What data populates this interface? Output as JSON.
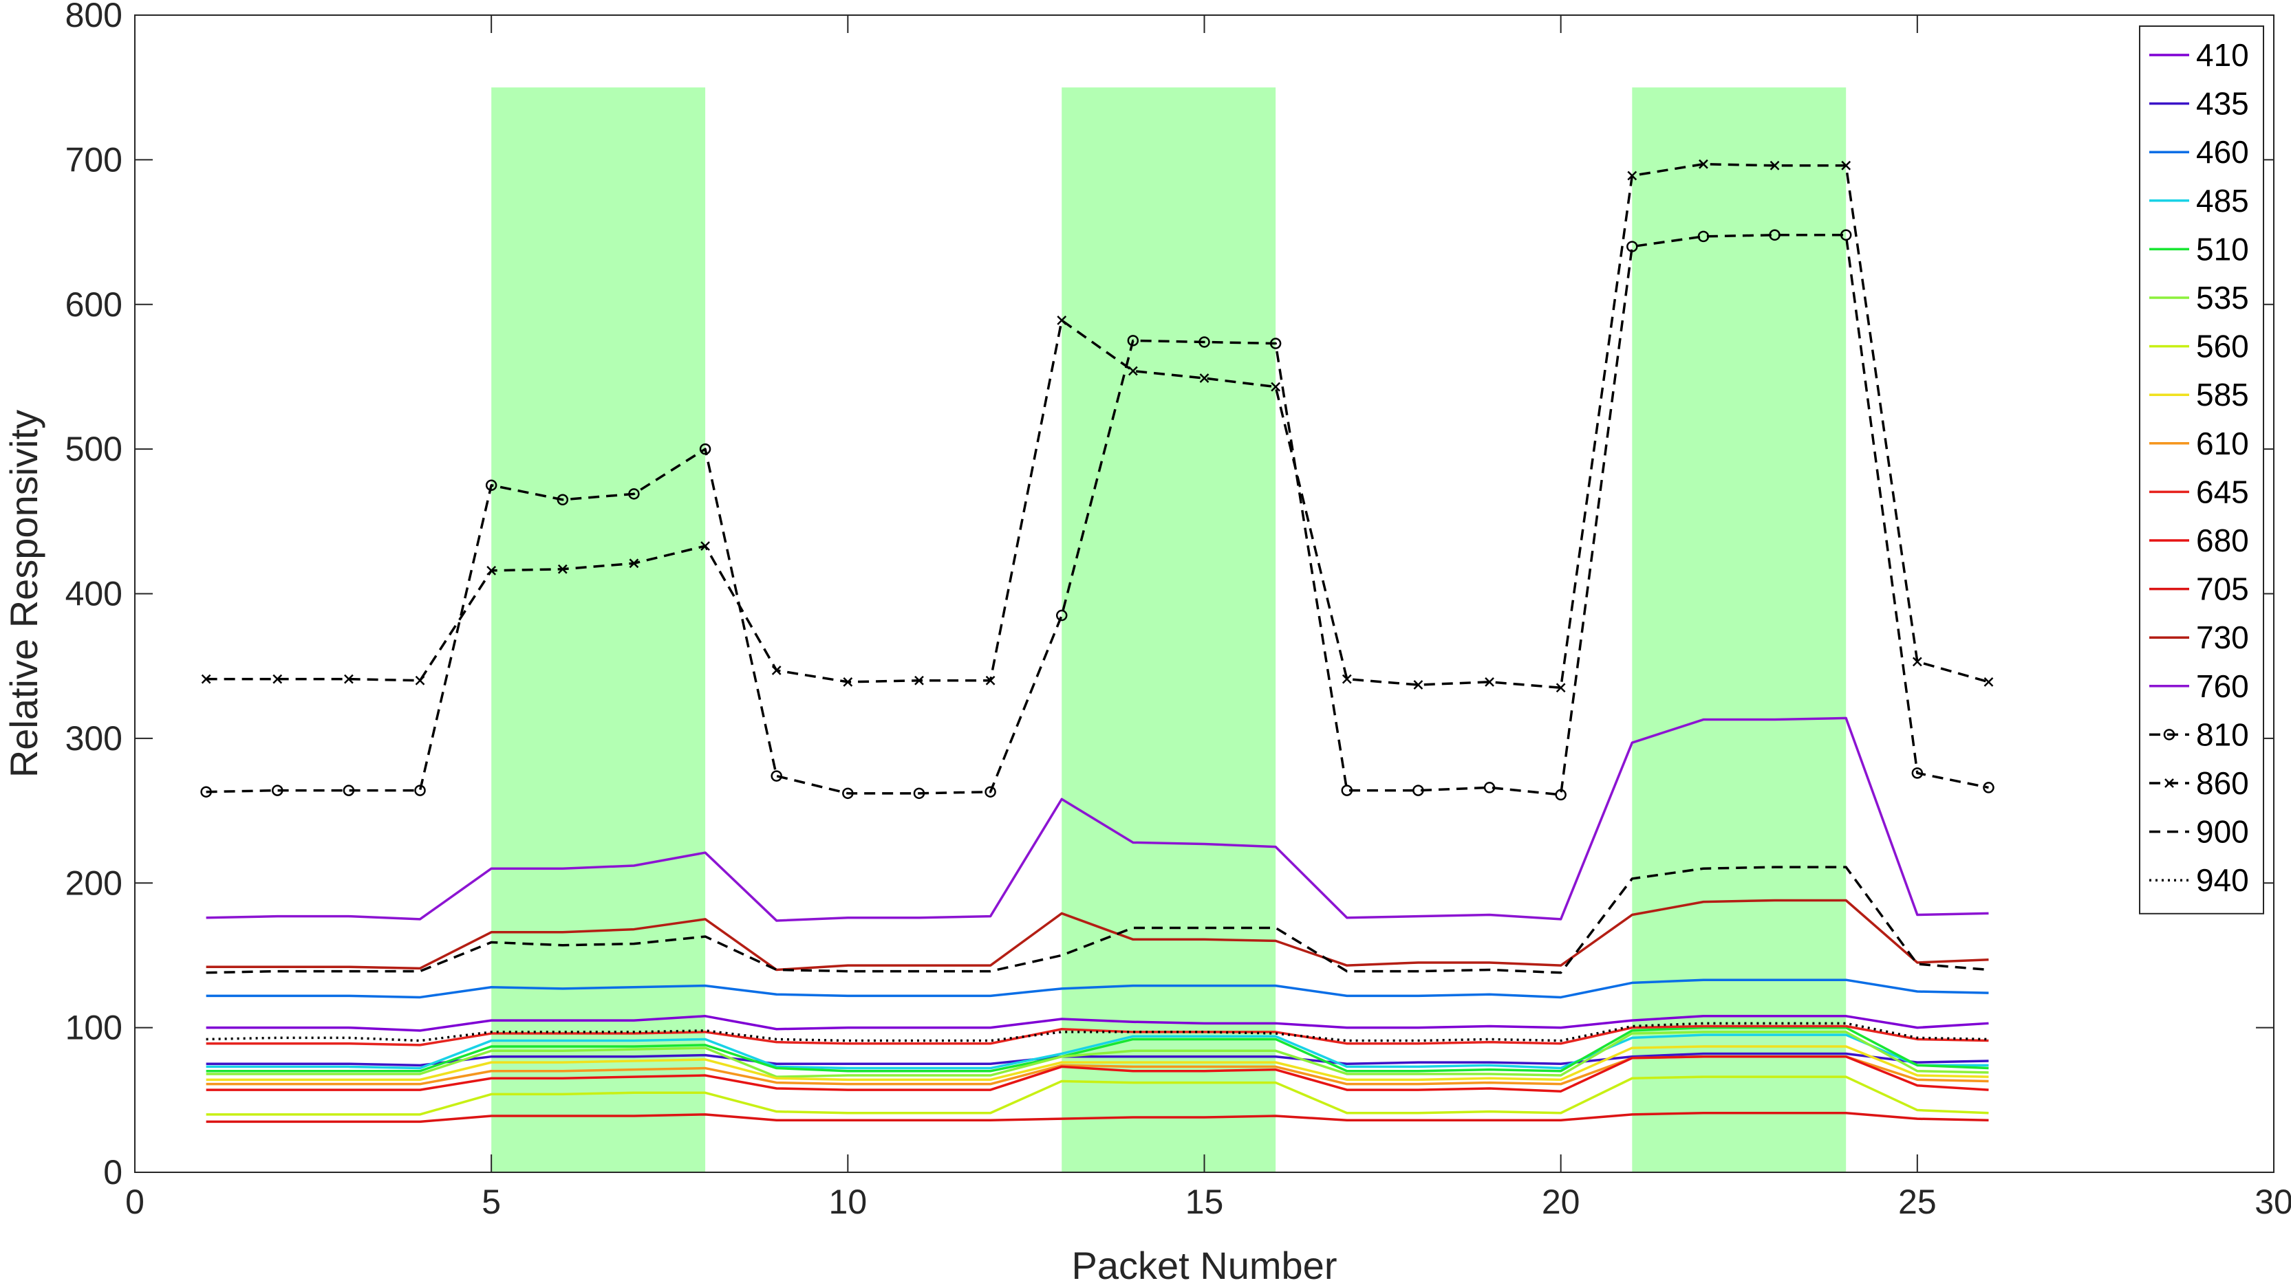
{
  "chart_data": {
    "type": "line",
    "xlabel": "Packet Number",
    "ylabel": "Relative Responsivity",
    "xlim": [
      0,
      30
    ],
    "ylim": [
      0,
      800
    ],
    "xticks": [
      0,
      5,
      10,
      15,
      20,
      25,
      30
    ],
    "yticks": [
      0,
      100,
      200,
      300,
      400,
      500,
      600,
      700,
      800
    ],
    "grid": false,
    "legend_position": "right",
    "highlight_color": "#b3ffb3",
    "highlight_bands": [
      [
        5,
        8
      ],
      [
        13,
        16
      ],
      [
        21,
        24
      ]
    ],
    "highlight_top": 750,
    "x": [
      1,
      2,
      3,
      4,
      5,
      6,
      7,
      8,
      9,
      10,
      11,
      12,
      13,
      14,
      15,
      16,
      17,
      18,
      19,
      20,
      21,
      22,
      23,
      24,
      25,
      26
    ],
    "series": [
      {
        "name": "410",
        "color": "#7f00d4",
        "style": "solid",
        "marker": "none",
        "values": [
          100,
          100,
          100,
          98,
          105,
          105,
          105,
          108,
          99,
          100,
          100,
          100,
          106,
          104,
          103,
          103,
          100,
          100,
          101,
          100,
          105,
          108,
          108,
          108,
          100,
          103
        ]
      },
      {
        "name": "435",
        "color": "#3c14c8",
        "style": "solid",
        "marker": "none",
        "values": [
          75,
          75,
          75,
          74,
          80,
          80,
          80,
          81,
          75,
          75,
          75,
          75,
          80,
          80,
          80,
          80,
          75,
          76,
          76,
          75,
          80,
          82,
          82,
          82,
          76,
          77
        ]
      },
      {
        "name": "460",
        "color": "#0a6ee6",
        "style": "solid",
        "marker": "none",
        "values": [
          122,
          122,
          122,
          121,
          128,
          127,
          128,
          129,
          123,
          122,
          122,
          122,
          127,
          129,
          129,
          129,
          122,
          122,
          123,
          121,
          131,
          133,
          133,
          133,
          125,
          124
        ]
      },
      {
        "name": "485",
        "color": "#19d2e6",
        "style": "solid",
        "marker": "none",
        "values": [
          73,
          73,
          73,
          72,
          91,
          91,
          91,
          92,
          73,
          72,
          72,
          72,
          82,
          94,
          94,
          94,
          73,
          73,
          74,
          72,
          93,
          95,
          95,
          95,
          74,
          74
        ]
      },
      {
        "name": "510",
        "color": "#19e633",
        "style": "solid",
        "marker": "none",
        "values": [
          70,
          70,
          70,
          70,
          87,
          87,
          87,
          88,
          72,
          70,
          70,
          70,
          80,
          92,
          92,
          92,
          70,
          70,
          71,
          70,
          98,
          100,
          100,
          100,
          74,
          72
        ]
      },
      {
        "name": "535",
        "color": "#8cf03c",
        "style": "solid",
        "marker": "none",
        "values": [
          68,
          68,
          68,
          68,
          84,
          84,
          85,
          86,
          66,
          67,
          67,
          67,
          80,
          84,
          84,
          84,
          68,
          68,
          68,
          67,
          96,
          97,
          97,
          97,
          70,
          69
        ]
      },
      {
        "name": "560",
        "color": "#c8f014",
        "style": "solid",
        "marker": "none",
        "values": [
          40,
          40,
          40,
          40,
          54,
          54,
          55,
          55,
          42,
          41,
          41,
          41,
          63,
          62,
          62,
          62,
          41,
          41,
          42,
          41,
          65,
          66,
          66,
          66,
          43,
          41
        ]
      },
      {
        "name": "585",
        "color": "#f0e11e",
        "style": "solid",
        "marker": "none",
        "values": [
          64,
          64,
          64,
          64,
          76,
          76,
          77,
          78,
          65,
          64,
          64,
          64,
          76,
          76,
          76,
          76,
          64,
          64,
          65,
          64,
          86,
          87,
          87,
          87,
          67,
          66
        ]
      },
      {
        "name": "610",
        "color": "#f5961e",
        "style": "solid",
        "marker": "none",
        "values": [
          61,
          61,
          61,
          61,
          70,
          70,
          71,
          72,
          62,
          61,
          61,
          61,
          74,
          73,
          73,
          73,
          61,
          61,
          62,
          61,
          79,
          80,
          80,
          80,
          64,
          63
        ]
      },
      {
        "name": "645",
        "color": "#e6231e",
        "style": "solid",
        "marker": "none",
        "values": [
          89,
          89,
          89,
          88,
          96,
          96,
          96,
          97,
          90,
          89,
          89,
          89,
          99,
          97,
          97,
          97,
          89,
          89,
          90,
          89,
          100,
          101,
          101,
          101,
          92,
          91
        ]
      },
      {
        "name": "680",
        "color": "#e61414",
        "style": "solid",
        "marker": "none",
        "values": [
          57,
          57,
          57,
          57,
          65,
          65,
          66,
          67,
          58,
          57,
          57,
          57,
          73,
          70,
          70,
          71,
          57,
          57,
          58,
          56,
          79,
          80,
          80,
          80,
          60,
          57
        ]
      },
      {
        "name": "705",
        "color": "#dc1414",
        "style": "solid",
        "marker": "none",
        "values": [
          35,
          35,
          35,
          35,
          39,
          39,
          39,
          40,
          36,
          36,
          36,
          36,
          37,
          38,
          38,
          39,
          36,
          36,
          36,
          36,
          40,
          41,
          41,
          41,
          37,
          36
        ]
      },
      {
        "name": "730",
        "color": "#b41e14",
        "style": "solid",
        "marker": "none",
        "values": [
          142,
          142,
          142,
          141,
          166,
          166,
          168,
          175,
          140,
          143,
          143,
          143,
          179,
          161,
          161,
          160,
          143,
          145,
          145,
          143,
          178,
          187,
          188,
          188,
          145,
          147
        ]
      },
      {
        "name": "760",
        "color": "#8c14d2",
        "style": "solid",
        "marker": "none",
        "values": [
          176,
          177,
          177,
          175,
          210,
          210,
          212,
          221,
          174,
          176,
          176,
          177,
          258,
          228,
          227,
          225,
          176,
          177,
          178,
          175,
          297,
          313,
          313,
          314,
          178,
          179
        ]
      },
      {
        "name": "810",
        "color": "#000000",
        "style": "dashed",
        "marker": "circle",
        "values": [
          263,
          264,
          264,
          264,
          475,
          465,
          469,
          500,
          274,
          262,
          262,
          263,
          385,
          575,
          574,
          573,
          264,
          264,
          266,
          261,
          640,
          647,
          648,
          648,
          276,
          266
        ]
      },
      {
        "name": "860",
        "color": "#000000",
        "style": "dashed",
        "marker": "x",
        "values": [
          341,
          341,
          341,
          340,
          416,
          417,
          421,
          433,
          347,
          339,
          340,
          340,
          589,
          554,
          549,
          543,
          341,
          337,
          339,
          335,
          689,
          697,
          696,
          696,
          353,
          339
        ]
      },
      {
        "name": "900",
        "color": "#000000",
        "style": "dashed",
        "marker": "none",
        "values": [
          138,
          139,
          139,
          139,
          159,
          157,
          158,
          163,
          140,
          139,
          139,
          139,
          150,
          169,
          169,
          169,
          139,
          139,
          140,
          138,
          203,
          210,
          211,
          211,
          144,
          140
        ]
      },
      {
        "name": "940",
        "color": "#000000",
        "style": "dotted",
        "marker": "none",
        "values": [
          92,
          93,
          93,
          91,
          97,
          97,
          97,
          98,
          92,
          91,
          91,
          91,
          97,
          97,
          97,
          96,
          91,
          91,
          92,
          91,
          101,
          103,
          103,
          103,
          93,
          92
        ]
      }
    ]
  }
}
